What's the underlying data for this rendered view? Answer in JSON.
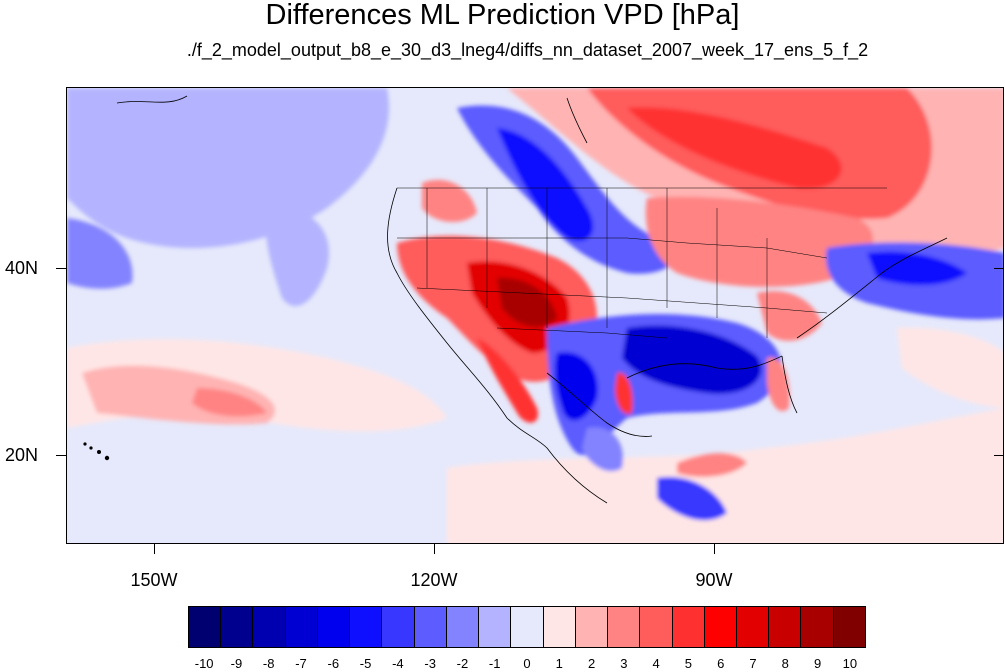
{
  "title": "Differences ML Prediction VPD [hPa]",
  "subtitle": "./f_2_model_output_b8_e_30_d3_lneg4/diffs_nn_dataset_2007_week_17_ens_5_f_2",
  "map": {
    "lon_labels": [
      "150W",
      "120W",
      "90W"
    ],
    "lat_labels": [
      "40N",
      "20N"
    ]
  },
  "colorbar": {
    "labels": [
      "-10",
      "-9",
      "-8",
      "-7",
      "-6",
      "-5",
      "-4",
      "-3",
      "-2",
      "-1",
      "0",
      "1",
      "2",
      "3",
      "4",
      "5",
      "6",
      "7",
      "8",
      "9",
      "10"
    ],
    "colors": [
      "#000070",
      "#00008f",
      "#0000b0",
      "#0000d2",
      "#0000ef",
      "#0f0fff",
      "#3737ff",
      "#5c5cff",
      "#8383ff",
      "#b3b3ff",
      "#e6e9fb",
      "#ffe6e6",
      "#ffb3b3",
      "#ff8383",
      "#ff5c5c",
      "#ff3030",
      "#ff0000",
      "#e30000",
      "#c80000",
      "#a80000",
      "#800000"
    ]
  }
}
